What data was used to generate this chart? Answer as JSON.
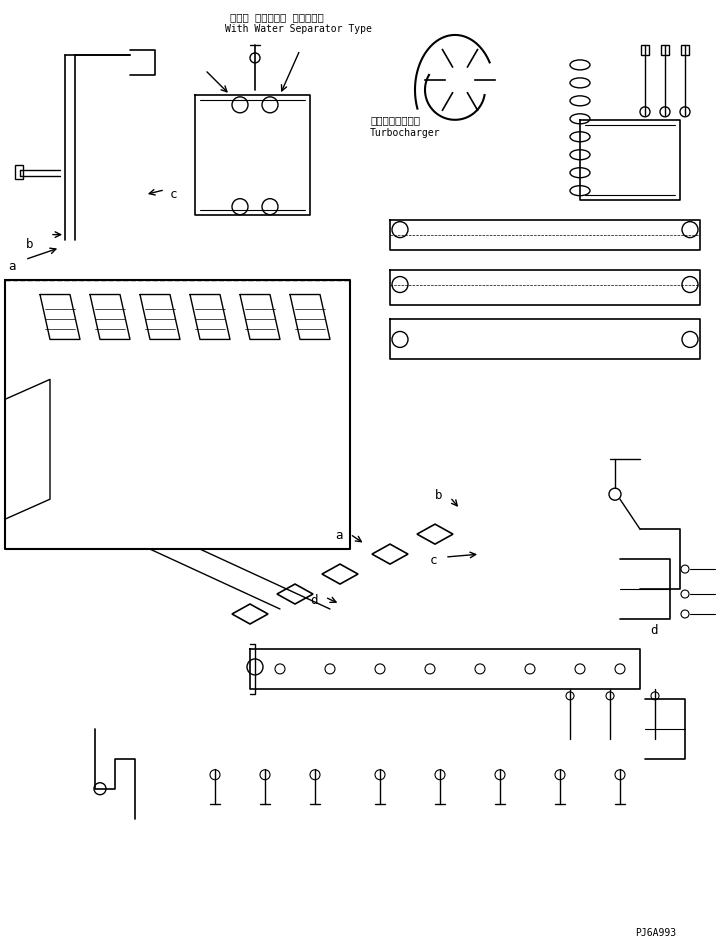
{
  "title_jp": "ウォー タセパレー タ付タイプ",
  "title_en": "With Water Separator Type",
  "subtitle_jp": "ターボチャージャ",
  "subtitle_en": "Turbocharger",
  "part_code": "PJ6A993",
  "bg_color": "#ffffff",
  "line_color": "#000000",
  "text_color": "#000000",
  "fig_width": 7.27,
  "fig_height": 9.41,
  "dpi": 100
}
